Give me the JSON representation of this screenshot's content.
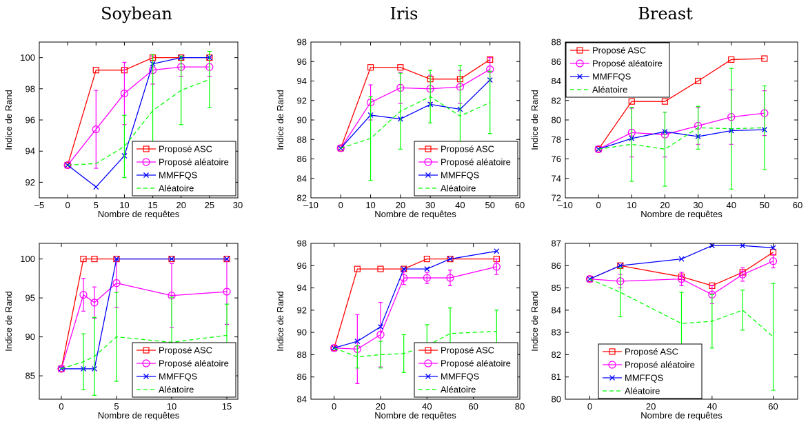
{
  "column_titles": [
    "Soybean",
    "Iris",
    "Breast"
  ],
  "colors": {
    "asc": "#ff0000",
    "alea_proposed": "#ff00ff",
    "mmffqs": "#0000ff",
    "random": "#00ff00"
  },
  "chart_data": [
    {
      "type": "line",
      "id": "soybean-top",
      "ylabel": "Indice de Rand",
      "xlabel": "Nombre de requêtes",
      "xlim": [
        -5,
        30
      ],
      "ylim": [
        91,
        101
      ],
      "xticks": [
        -5,
        0,
        5,
        10,
        15,
        20,
        25,
        30
      ],
      "yticks": [
        92,
        94,
        96,
        98,
        100
      ],
      "legend_position": "bottom-right",
      "series": [
        {
          "name": "Proposé ASC",
          "key": "asc",
          "x": [
            0,
            5,
            10,
            15,
            20,
            25
          ],
          "y": [
            93.1,
            99.2,
            99.2,
            100,
            100,
            100
          ]
        },
        {
          "name": "Proposé aléatoire",
          "key": "alea_proposed",
          "x": [
            0,
            5,
            10,
            15,
            20,
            25
          ],
          "y": [
            93.1,
            95.4,
            97.7,
            99.2,
            99.4,
            99.4
          ],
          "err": [
            0,
            2.5,
            2.0,
            0.9,
            0.6,
            0.6
          ]
        },
        {
          "name": "MMFFQS",
          "key": "mmffqs",
          "x": [
            0,
            5,
            10,
            15,
            20,
            25
          ],
          "y": [
            93.1,
            91.7,
            93.7,
            99.6,
            100,
            100
          ]
        },
        {
          "name": "Aléatoire",
          "key": "random",
          "x": [
            0,
            5,
            10,
            15,
            20,
            25
          ],
          "y": [
            93.1,
            93.2,
            94.3,
            96.6,
            97.9,
            98.6
          ],
          "err": [
            0,
            0,
            2.0,
            3.6,
            2.2,
            1.8
          ]
        }
      ]
    },
    {
      "type": "line",
      "id": "iris-top",
      "ylabel": "Indice de Rand",
      "xlabel": "Nombre de requêtes",
      "xlim": [
        -10,
        60
      ],
      "ylim": [
        82,
        98
      ],
      "xticks": [
        -10,
        0,
        10,
        20,
        30,
        40,
        50,
        60
      ],
      "yticks": [
        82,
        84,
        86,
        88,
        90,
        92,
        94,
        96,
        98
      ],
      "legend_position": "bottom-right",
      "series": [
        {
          "name": "Proposé ASC",
          "key": "asc",
          "x": [
            0,
            10,
            20,
            30,
            40,
            50
          ],
          "y": [
            87.1,
            95.4,
            95.4,
            94.2,
            94.2,
            96.2
          ]
        },
        {
          "name": "Proposé aléatoire",
          "key": "alea_proposed",
          "x": [
            0,
            10,
            20,
            30,
            40,
            50
          ],
          "y": [
            87.1,
            91.8,
            93.3,
            93.2,
            93.4,
            95.2
          ],
          "err": [
            0,
            1.8,
            1.6,
            1.4,
            1.7,
            1.2
          ]
        },
        {
          "name": "MMFFQS",
          "key": "mmffqs",
          "x": [
            0,
            10,
            20,
            30,
            40,
            50
          ],
          "y": [
            87.1,
            90.5,
            90.1,
            91.6,
            91.1,
            94.1
          ]
        },
        {
          "name": "Aléatoire",
          "key": "random",
          "x": [
            0,
            10,
            20,
            30,
            40,
            50
          ],
          "y": [
            87.1,
            88.1,
            90.9,
            92.4,
            90.4,
            91.8
          ],
          "err": [
            0,
            4.3,
            3.9,
            2.7,
            5.2,
            3.2
          ]
        }
      ]
    },
    {
      "type": "line",
      "id": "breast-top",
      "ylabel": "Indice de Rand",
      "xlabel": "Nombre de requêtes",
      "xlim": [
        -10,
        60
      ],
      "ylim": [
        72,
        88
      ],
      "xticks": [
        -10,
        0,
        10,
        20,
        30,
        40,
        50,
        60
      ],
      "yticks": [
        72,
        74,
        76,
        78,
        80,
        82,
        84,
        86,
        88
      ],
      "legend_position": "top-left",
      "series": [
        {
          "name": "Proposé ASC",
          "key": "asc",
          "x": [
            0,
            10,
            20,
            30,
            40,
            50
          ],
          "y": [
            77.0,
            81.9,
            81.9,
            84.0,
            86.2,
            86.3
          ]
        },
        {
          "name": "Proposé aléatoire",
          "key": "alea_proposed",
          "x": [
            0,
            10,
            20,
            30,
            40,
            50
          ],
          "y": [
            77.0,
            78.7,
            78.5,
            79.4,
            80.3,
            80.7
          ],
          "err": [
            0,
            2.5,
            2.3,
            1.9,
            2.8,
            2.3
          ]
        },
        {
          "name": "MMFFQS",
          "key": "mmffqs",
          "x": [
            0,
            10,
            20,
            30,
            40,
            50
          ],
          "y": [
            77.0,
            78.1,
            78.8,
            78.3,
            78.9,
            79.0
          ]
        },
        {
          "name": "Aléatoire",
          "key": "random",
          "x": [
            0,
            10,
            20,
            30,
            40,
            50
          ],
          "y": [
            77.0,
            77.5,
            77.0,
            79.2,
            79.1,
            79.2
          ],
          "err": [
            0,
            3.8,
            3.8,
            2.2,
            6.2,
            4.3
          ]
        }
      ]
    },
    {
      "type": "line",
      "id": "soybean-bottom",
      "ylabel": "Indice de Rand",
      "xlabel": "Nombre de requêtes",
      "xlim": [
        -2,
        16
      ],
      "ylim": [
        82,
        102
      ],
      "xticks": [
        0,
        5,
        10,
        15
      ],
      "yticks": [
        85,
        90,
        95,
        100
      ],
      "legend_position": "bottom-right",
      "series": [
        {
          "name": "Proposé ASC",
          "key": "asc",
          "x": [
            0,
            2,
            3,
            5,
            10,
            15
          ],
          "y": [
            85.9,
            100,
            100,
            100,
            100,
            100
          ]
        },
        {
          "name": "Proposé aléatoire",
          "key": "alea_proposed",
          "x": [
            0,
            2,
            3,
            5,
            10,
            15
          ],
          "y": [
            85.9,
            95.4,
            94.4,
            96.9,
            95.3,
            95.8
          ],
          "err": [
            0,
            2.1,
            2.0,
            3.1,
            4.1,
            4.2
          ]
        },
        {
          "name": "MMFFQS",
          "key": "mmffqs",
          "x": [
            0,
            2,
            3,
            5,
            10,
            15
          ],
          "y": [
            85.9,
            85.9,
            85.9,
            100,
            100,
            100
          ]
        },
        {
          "name": "Aléatoire",
          "key": "random",
          "x": [
            0,
            2,
            3,
            5,
            10,
            15
          ],
          "y": [
            85.9,
            86.8,
            87.5,
            90.0,
            89.3,
            90.2
          ],
          "err": [
            0,
            3.6,
            5.0,
            5.7,
            5.8,
            4.0
          ]
        }
      ]
    },
    {
      "type": "line",
      "id": "iris-bottom",
      "ylabel": "Indice de Rand",
      "xlabel": "Nombre de requêtes",
      "xlim": [
        -10,
        80
      ],
      "ylim": [
        84,
        98
      ],
      "xticks": [
        0,
        20,
        40,
        60,
        80
      ],
      "yticks": [
        84,
        86,
        88,
        90,
        92,
        94,
        96,
        98
      ],
      "legend_position": "bottom-right",
      "series": [
        {
          "name": "Proposé ASC",
          "key": "asc",
          "x": [
            0,
            10,
            20,
            30,
            40,
            50,
            70
          ],
          "y": [
            88.6,
            95.7,
            95.7,
            95.7,
            96.6,
            96.6,
            96.6
          ]
        },
        {
          "name": "Proposé aléatoire",
          "key": "alea_proposed",
          "x": [
            0,
            10,
            20,
            30,
            40,
            50,
            70
          ],
          "y": [
            88.6,
            88.5,
            89.8,
            94.9,
            94.9,
            94.9,
            95.9
          ],
          "err": [
            0,
            3.1,
            2.9,
            0.6,
            0.5,
            0.7,
            0.7
          ]
        },
        {
          "name": "MMFFQS",
          "key": "mmffqs",
          "x": [
            0,
            10,
            20,
            30,
            40,
            50,
            70
          ],
          "y": [
            88.6,
            89.2,
            90.5,
            95.7,
            95.7,
            96.6,
            97.3
          ]
        },
        {
          "name": "Aléatoire",
          "key": "random",
          "x": [
            0,
            10,
            20,
            30,
            40,
            50,
            70
          ],
          "y": [
            88.6,
            87.8,
            88.0,
            88.1,
            88.8,
            89.9,
            90.1
          ],
          "err": [
            0,
            1.0,
            1.2,
            1.7,
            1.9,
            2.3,
            1.9
          ]
        }
      ]
    },
    {
      "type": "line",
      "id": "breast-bottom",
      "ylabel": "Indice de Rand",
      "xlabel": "Nombre de requêtes",
      "xlim": [
        -8,
        68
      ],
      "ylim": [
        80,
        87
      ],
      "xticks": [
        0,
        20,
        40,
        60
      ],
      "yticks": [
        80,
        81,
        82,
        83,
        84,
        85,
        86,
        87
      ],
      "legend_position": "bottom-left",
      "series": [
        {
          "name": "Proposé ASC",
          "key": "asc",
          "x": [
            0,
            10,
            30,
            40,
            50,
            60
          ],
          "y": [
            85.4,
            86.0,
            85.5,
            85.1,
            85.7,
            86.6
          ]
        },
        {
          "name": "Proposé aléatoire",
          "key": "alea_proposed",
          "x": [
            0,
            10,
            30,
            40,
            50,
            60
          ],
          "y": [
            85.4,
            85.3,
            85.4,
            84.7,
            85.6,
            86.2
          ],
          "err": [
            0,
            0.3,
            0.3,
            0.4,
            0.3,
            0.3
          ]
        },
        {
          "name": "MMFFQS",
          "key": "mmffqs",
          "x": [
            0,
            10,
            30,
            40,
            50,
            60
          ],
          "y": [
            85.4,
            86.0,
            86.3,
            86.9,
            86.9,
            86.8
          ]
        },
        {
          "name": "Aléatoire",
          "key": "random",
          "x": [
            0,
            10,
            30,
            40,
            50,
            60
          ],
          "y": [
            85.4,
            84.8,
            83.4,
            83.5,
            84.0,
            82.8
          ],
          "err": [
            0,
            1.1,
            1.4,
            1.2,
            0.9,
            2.4
          ]
        }
      ]
    }
  ]
}
